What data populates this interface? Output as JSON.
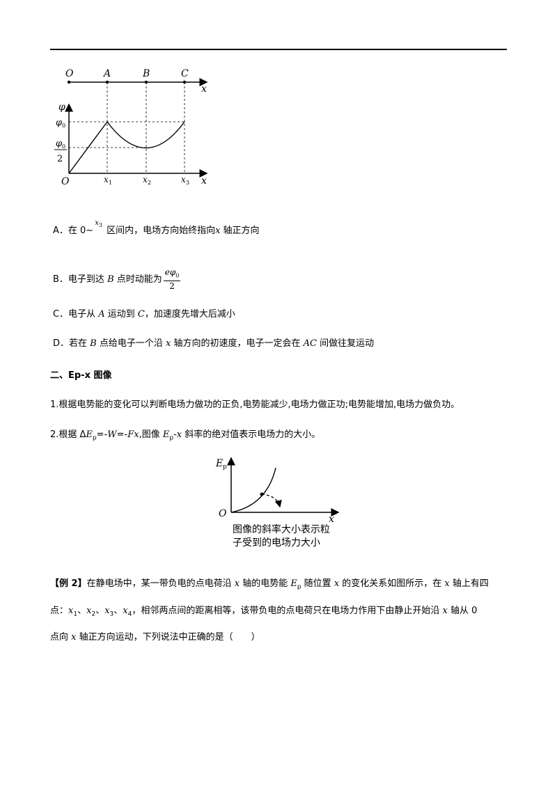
{
  "figure1": {
    "points": [
      "O",
      "A",
      "B",
      "C"
    ],
    "axis_x": "x",
    "axis_y": "φ",
    "phi0": "φ",
    "phi0_sub": "0",
    "half_num": "φ",
    "half_sub": "0",
    "half_den": "2",
    "origin": "O",
    "ticks": [
      {
        "main": "x",
        "sub": "1"
      },
      {
        "main": "x",
        "sub": "2"
      },
      {
        "main": "x",
        "sub": "3"
      }
    ]
  },
  "options": {
    "A": {
      "p1": "A．在 0~",
      "x3_main": "x",
      "x3_sub": "3",
      "p2": " 区间内，电场方向始终指向",
      "x": "x",
      "p3": " 轴正方向"
    },
    "B": {
      "p1": "B．电子到达 ",
      "B": "B",
      "p2": " 点时动能为",
      "num_e": "eφ",
      "num_sub": "0",
      "den": "2"
    },
    "C": {
      "p1": "C．电子从 ",
      "A": "A",
      "p2": " 运动到 ",
      "C": "C",
      "p3": "，加速度先增大后减小"
    },
    "D": {
      "p1": "D．若在 ",
      "B": "B",
      "p2": " 点给电子一个沿 ",
      "x": "x",
      "p3": " 轴方向的初速度，电子一定会在 ",
      "AC": "AC",
      "p4": " 间做往复运动"
    }
  },
  "section2": {
    "title": "二、Ep-x 图像",
    "item1": "1.根据电势能的变化可以判断电场力做功的正负,电势能减少,电场力做正功;电势能增加,电场力做负功。",
    "item2": {
      "p1": "2.根据 Δ",
      "E": "E",
      "p_sub": "p",
      "p2": "=-",
      "W": "W",
      "p3": "=-",
      "Fx": "Fx",
      "p4": ",图像 ",
      "E2": "E",
      "p_sub2": "p",
      "p5": "-",
      "x": "x",
      "p6": " 斜率的绝对值表示电场力的大小。"
    }
  },
  "figure2": {
    "axis_y_main": "E",
    "axis_y_sub": "p",
    "origin": "O",
    "axis_x": "x",
    "caption_line1": "图像的斜率大小表示粒",
    "caption_line2": "子受到的电场力大小"
  },
  "example2": {
    "label": "【例 2】",
    "p1": "在静电场中，某一带负电的点电荷沿 ",
    "x1": "x",
    "p2": " 轴的电势能 ",
    "E": "E",
    "Esub": "p",
    "p3": " 随位置 ",
    "x2": "x",
    "p4": " 的变化关系如图所示，在 ",
    "x3": "x",
    "p5": " 轴上有四",
    "line2_p1": "点：",
    "pts": [
      {
        "main": "x",
        "sub": "1"
      },
      {
        "main": "x",
        "sub": "2"
      },
      {
        "main": "x",
        "sub": "3"
      },
      {
        "main": "x",
        "sub": "4"
      }
    ],
    "sep": "、",
    "line2_p2": "，相邻两点间的距离相等，该带负电的点电荷只在电场力作用下由静止开始沿 ",
    "x4": "x",
    "line2_p3": " 轴从 0",
    "line3_p1": "点向 ",
    "x5": "x",
    "line3_p2": " 轴正方向运动，下列说法中正确的是（　　）"
  }
}
